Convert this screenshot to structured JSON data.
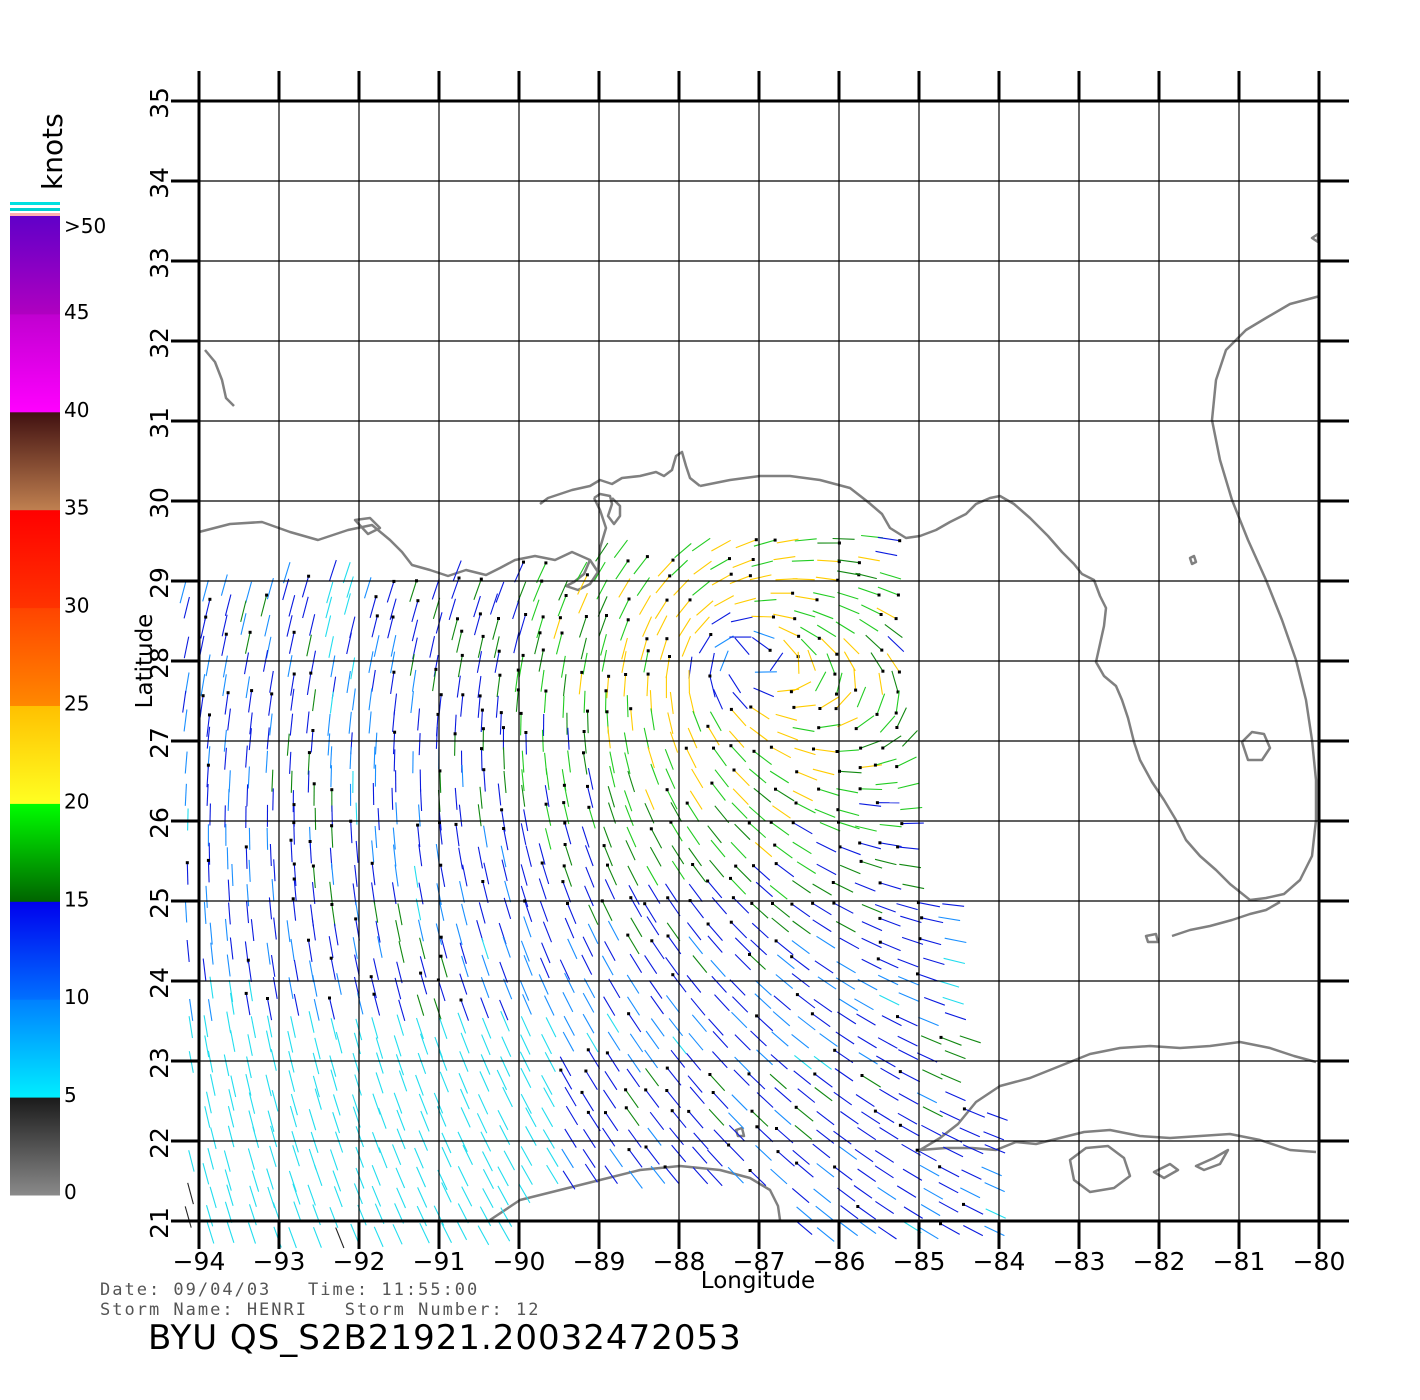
{
  "chart_data": {
    "type": "wind-vector-map",
    "xlabel": "Longitude",
    "ylabel": "Latitude",
    "xlim": [
      -94,
      -80
    ],
    "ylim": [
      21,
      35
    ],
    "x_ticks": [
      "−94",
      "−93",
      "−92",
      "−91",
      "−90",
      "−89",
      "−88",
      "−87",
      "−86",
      "−85",
      "−84",
      "−83",
      "−82",
      "−81",
      "−80"
    ],
    "y_ticks": [
      "21",
      "22",
      "23",
      "24",
      "25",
      "26",
      "27",
      "28",
      "29",
      "30",
      "31",
      "32",
      "33",
      "34",
      "35"
    ],
    "storm_center": {
      "lon": -87.3,
      "lat": 28.1
    },
    "legend": {
      "title": "knots",
      "labels": [
        "0",
        "5",
        "10",
        "15",
        "20",
        "25",
        "30",
        "35",
        "40",
        "45",
        ">50"
      ],
      "bins": [
        {
          "range": "0-5",
          "colors": [
            "#8a8a8a",
            "#1a1a1a"
          ]
        },
        {
          "range": "5-10",
          "colors": [
            "#00eeff",
            "#0080ff"
          ]
        },
        {
          "range": "10-15",
          "colors": [
            "#0070ff",
            "#0000ee"
          ]
        },
        {
          "range": "15-20",
          "colors": [
            "#006400",
            "#00ff00"
          ]
        },
        {
          "range": "20-25",
          "colors": [
            "#ffff22",
            "#ffc000"
          ]
        },
        {
          "range": "25-30",
          "colors": [
            "#ff8800",
            "#ff4400"
          ]
        },
        {
          "range": "30-35",
          "colors": [
            "#ff3300",
            "#ff0000"
          ]
        },
        {
          "range": "35-40",
          "colors": [
            "#c08050",
            "#401010"
          ]
        },
        {
          "range": "40-45",
          "colors": [
            "#ff00ff",
            "#c000d0"
          ]
        },
        {
          "range": "45-50",
          "colors": [
            "#b000c0",
            "#6000c8"
          ]
        }
      ]
    }
  },
  "footer": {
    "line1": "Date: 09/04/03   Time: 11:55:00",
    "line2": "Storm Name: HENRI   Storm Number: 12",
    "title": "BYU QS_S2B21921.20032472053"
  }
}
